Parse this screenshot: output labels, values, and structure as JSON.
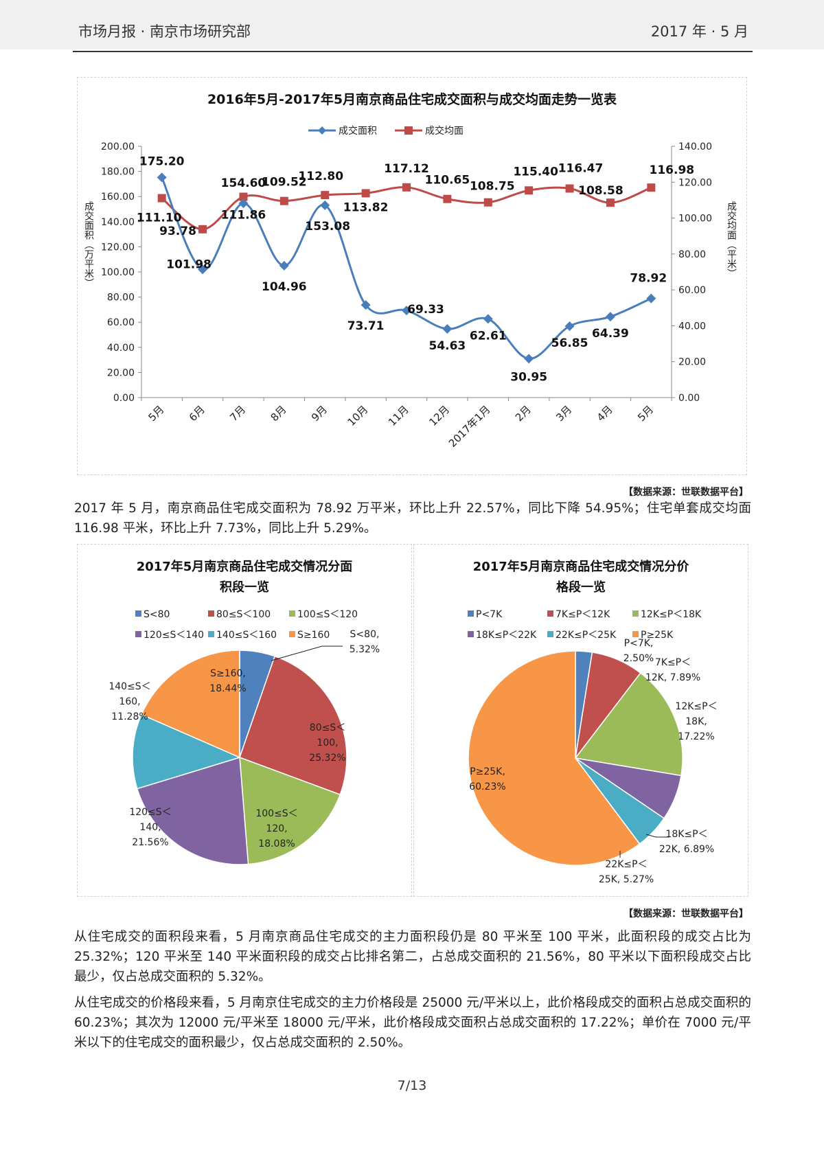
{
  "header": {
    "left_title": "市场月报 · 南京市场研究部",
    "right_date": "2017 年 · 5 月"
  },
  "line_chart": {
    "title": "2016年5月-2017年5月南京商品住宅成交面积与成交均面走势一览表",
    "legend_area": "成交面积",
    "legend_avg": "成交均面",
    "y_left_label": "成交面积（万平米）",
    "y_right_label": "成交均面（平米）"
  },
  "pie_left": {
    "title_line1": "2017年5月南京商品住宅成交情况分面",
    "title_line2": "积段一览"
  },
  "pie_right": {
    "title_line1": "2017年5月南京商品住宅成交情况分价",
    "title_line2": "格段一览"
  },
  "source_1": "【数据来源：世联数据平台】",
  "source_2": "【数据来源：世联数据平台】",
  "paragraph_1": "2017 年 5 月，南京商品住宅成交面积为 78.92 万平米，环比上升 22.57%，同比下降 54.95%；住宅单套成交均面 116.98 平米，环比上升 7.73%，同比上升 5.29%。",
  "paragraph_2": "从住宅成交的面积段来看，5 月南京商品住宅成交的主力面积段仍是 80 平米至 100 平米，此面积段的成交占比为 25.32%；120 平米至 140 平米面积段的成交占比排名第二，占总成交面积的 21.56%，80 平米以下面积段成交占比最少，仅占总成交面积的 5.32%。",
  "paragraph_3": "从住宅成交的价格段来看，5 月南京住宅成交的主力价格段是 25000 元/平米以上，此价格段成交的面积占总成交面积的 60.23%；其次为 12000 元/平米至 18000 元/平米，此价格段成交面积占总成交面积的 17.22%；单价在 7000 元/平米以下的住宅成交的面积最少，仅占总成交面积的 2.50%。",
  "page_number": "7/13",
  "colors": {
    "area_line": "#4a7ebb",
    "avg_line": "#be4b48",
    "pie": [
      "#4f81bd",
      "#c0504d",
      "#9bbb59",
      "#8064a2",
      "#4bacc6",
      "#f79646"
    ]
  },
  "chart_data": [
    {
      "type": "line",
      "title": "2016年5月-2017年5月南京商品住宅成交面积与成交均面走势一览表",
      "categories": [
        "5月",
        "6月",
        "7月",
        "8月",
        "9月",
        "10月",
        "11月",
        "12月",
        "2017年1月",
        "2月",
        "3月",
        "4月",
        "5月"
      ],
      "series": [
        {
          "name": "成交面积",
          "axis": "left",
          "values": [
            175.2,
            101.98,
            154.6,
            104.96,
            153.08,
            73.71,
            69.33,
            54.63,
            62.61,
            30.95,
            56.85,
            64.39,
            78.92
          ],
          "labels": [
            "175.20",
            "101.98",
            "154.60",
            "104.96",
            "153.08",
            "73.71",
            "69.33",
            "54.63",
            "62.61",
            "30.95",
            "56.85",
            "64.39",
            "78.92"
          ],
          "color": "#4a7ebb",
          "marker": "diamond"
        },
        {
          "name": "成交均面",
          "axis": "right",
          "values": [
            111.1,
            93.78,
            111.86,
            109.52,
            112.8,
            113.82,
            117.12,
            110.65,
            108.75,
            115.4,
            116.47,
            108.58,
            116.98
          ],
          "labels": [
            "111.10",
            "93.78",
            "111.86",
            "109.52",
            "112.80",
            "113.82",
            "117.12",
            "110.65",
            "108.75",
            "115.40",
            "116.47",
            "108.58",
            "116.98"
          ],
          "color": "#be4b48",
          "marker": "square"
        }
      ],
      "ylim_left": [
        0,
        200
      ],
      "yticks_left": [
        "0.00",
        "20.00",
        "40.00",
        "60.00",
        "80.00",
        "100.00",
        "120.00",
        "140.00",
        "160.00",
        "180.00",
        "200.00"
      ],
      "ylim_right": [
        0,
        140
      ],
      "yticks_right": [
        "0.00",
        "20.00",
        "40.00",
        "60.00",
        "80.00",
        "100.00",
        "120.00",
        "140.00"
      ],
      "ylabel_left": "成交面积（万平米）",
      "ylabel_right": "成交均面（平米）",
      "legend": "top-center",
      "grid": false
    },
    {
      "type": "pie",
      "title": "2017年5月南京商品住宅成交情况分面积段一览",
      "legend": [
        "S<80",
        "80≤S＜100",
        "100≤S＜120",
        "120≤S＜140",
        "140≤S＜160",
        "S≥160"
      ],
      "slices": [
        {
          "name": "S<80",
          "value": 5.32,
          "label": "S<80, 5.32%"
        },
        {
          "name": "80≤S＜100",
          "value": 25.32,
          "label": "80≤S＜100, 25.32%"
        },
        {
          "name": "100≤S＜120",
          "value": 18.08,
          "label": "100≤S＜120, 18.08%"
        },
        {
          "name": "120≤S＜140",
          "value": 21.56,
          "label": "120≤S＜140, 21.56%"
        },
        {
          "name": "140≤S＜160",
          "value": 11.28,
          "label": "140≤S＜160, 11.28%"
        },
        {
          "name": "S≥160",
          "value": 18.44,
          "label": "S≥160, 18.44%"
        }
      ]
    },
    {
      "type": "pie",
      "title": "2017年5月南京商品住宅成交情况分价格段一览",
      "legend": [
        "P<7K",
        "7K≤P＜12K",
        "12K≤P＜18K",
        "18K≤P＜22K",
        "22K≤P＜25K",
        "P≥25K"
      ],
      "slices": [
        {
          "name": "P<7K",
          "value": 2.5,
          "label": "P<7K, 2.50%"
        },
        {
          "name": "7K≤P＜12K",
          "value": 7.89,
          "label": "7K≤P＜12K, 7.89%"
        },
        {
          "name": "12K≤P＜18K",
          "value": 17.22,
          "label": "12K≤P＜18K, 17.22%"
        },
        {
          "name": "18K≤P＜22K",
          "value": 6.89,
          "label": "18K≤P＜22K, 6.89%"
        },
        {
          "name": "22K≤P＜25K",
          "value": 5.27,
          "label": "22K≤P＜25K, 5.27%"
        },
        {
          "name": "P≥25K",
          "value": 60.23,
          "label": "P≥25K, 60.23%"
        }
      ]
    }
  ]
}
